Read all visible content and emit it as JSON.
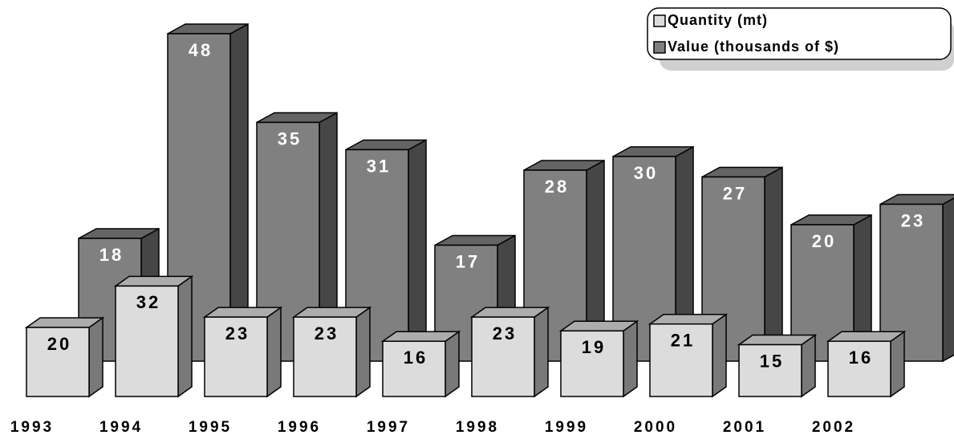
{
  "chart_data": {
    "type": "bar3d",
    "categories": [
      "1993",
      "1994",
      "1995",
      "1996",
      "1997",
      "1998",
      "1999",
      "2000",
      "2001",
      "2002"
    ],
    "series": [
      {
        "name": "Quantity (mt)",
        "color": "#dcdcdc",
        "values": [
          20,
          32,
          23,
          23,
          16,
          23,
          19,
          21,
          15,
          16
        ]
      },
      {
        "name": "Value (thousands of $)",
        "color": "#808080",
        "values": [
          18,
          48,
          35,
          31,
          17,
          28,
          30,
          27,
          20,
          23
        ]
      }
    ],
    "legend": "top-right"
  }
}
